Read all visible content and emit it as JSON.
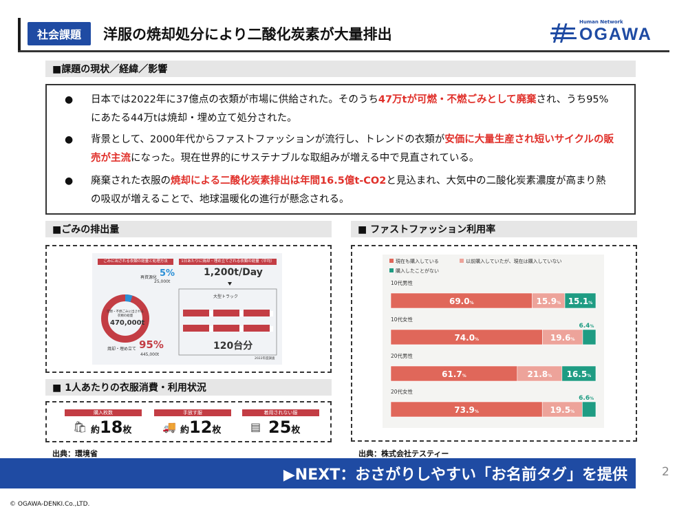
{
  "header": {
    "tag": "社会課題",
    "title": "洋服の焼却処分により二酸化炭素が大量排出",
    "logo_small": "Human Network",
    "logo_main": "OGAWA",
    "brand_color": "#1f4ba3"
  },
  "issue": {
    "heading": "■課題の現状／経緯／影響",
    "b1_pre": "日本では2022年に37億点の衣類が市場に供給された。そのうち",
    "b1_red": "47万tが可燃・不燃ごみとして廃棄",
    "b1_post": "され、うち95%にあたる44万tは焼却・埋め立て処分された。",
    "b2_pre": "背景として、2000年代からファストファッションが流行し、トレンドの衣類が",
    "b2_red": "安価に大量生産され短いサイクルの販売が主流",
    "b2_post": "になった。現在世界的にサステナブルな取組みが増える中で見直されている。",
    "b3_pre": "廃棄された衣服の",
    "b3_red": "焼却による二酸化炭素排出は年間16.5億t-CO2",
    "b3_post": "と見込まれ、大気中の二酸化炭素濃度が高まり熱の吸収が増えることで、地球温暖化の進行が懸念される。",
    "bullet": "●",
    "accent_color": "#e0302a"
  },
  "garbage": {
    "heading": "■ごみの排出量",
    "left_header": "ごみに出される衣類の総量と処理方法",
    "right_header": "1日あたりに焼却・埋め立てされる衣類の総量（平均）",
    "reuse_label": "再資源化",
    "reuse_pct": "5%",
    "reuse_amount": "25,000t",
    "total_label": "可燃・不燃ごみに出される衣類の総量",
    "total": "470,000t",
    "burn_label": "焼却・埋め立て",
    "burn_pct": "95%",
    "burn_amount": "445,000t",
    "daily": "1,200t/Day",
    "truck_label": "大型トラック",
    "truck_count": "120台分",
    "year_note": "2022年度調査",
    "source": "出典：環境省"
  },
  "consumption": {
    "heading": "■ 1人あたりの衣服消費・利用状況",
    "items": [
      {
        "label": "購入枚数",
        "prefix": "約",
        "num": "18",
        "unit": "枚",
        "icon": "shopping-bag-icon"
      },
      {
        "label": "手放す服",
        "prefix": "約",
        "num": "12",
        "unit": "枚",
        "icon": "truck-icon"
      },
      {
        "label": "着用されない服",
        "prefix": "",
        "num": "25",
        "unit": "枚",
        "icon": "drawer-icon"
      }
    ]
  },
  "fastfashion": {
    "heading": "■ ファストファッション利用率",
    "source": "出典：株式会社テスティー"
  },
  "chart_data": {
    "type": "bar",
    "orientation": "horizontal-stacked-100",
    "legend": [
      "現在も購入している",
      "以前購入していたが、現在は購入していない",
      "購入したことがない"
    ],
    "legend_placement": "top-left",
    "colors": [
      "#e0675a",
      "#eda39a",
      "#1f9c83"
    ],
    "categories": [
      "10代男性",
      "10代女性",
      "20代男性",
      "20代女性"
    ],
    "series": [
      {
        "name": "現在も購入している",
        "values": [
          69.0,
          74.0,
          61.7,
          73.9
        ]
      },
      {
        "name": "以前購入していたが、現在は購入していない",
        "values": [
          15.9,
          19.6,
          21.8,
          19.5
        ]
      },
      {
        "name": "購入したことがない",
        "values": [
          15.1,
          6.4,
          16.5,
          6.6
        ]
      }
    ],
    "value_labels": [
      [
        "69.0",
        "15.9",
        "15.1"
      ],
      [
        "74.0",
        "19.6",
        "6.4"
      ],
      [
        "61.7",
        "21.8",
        "16.5"
      ],
      [
        "73.9",
        "19.5",
        "6.6"
      ]
    ],
    "unit": "%",
    "xlim": [
      0,
      100
    ]
  },
  "footer": {
    "next": "▶NEXT：おさがりしやすい「お名前タグ」を提供",
    "page": "2",
    "copyright": "© OGAWA-DENKI.Co.,LTD."
  }
}
